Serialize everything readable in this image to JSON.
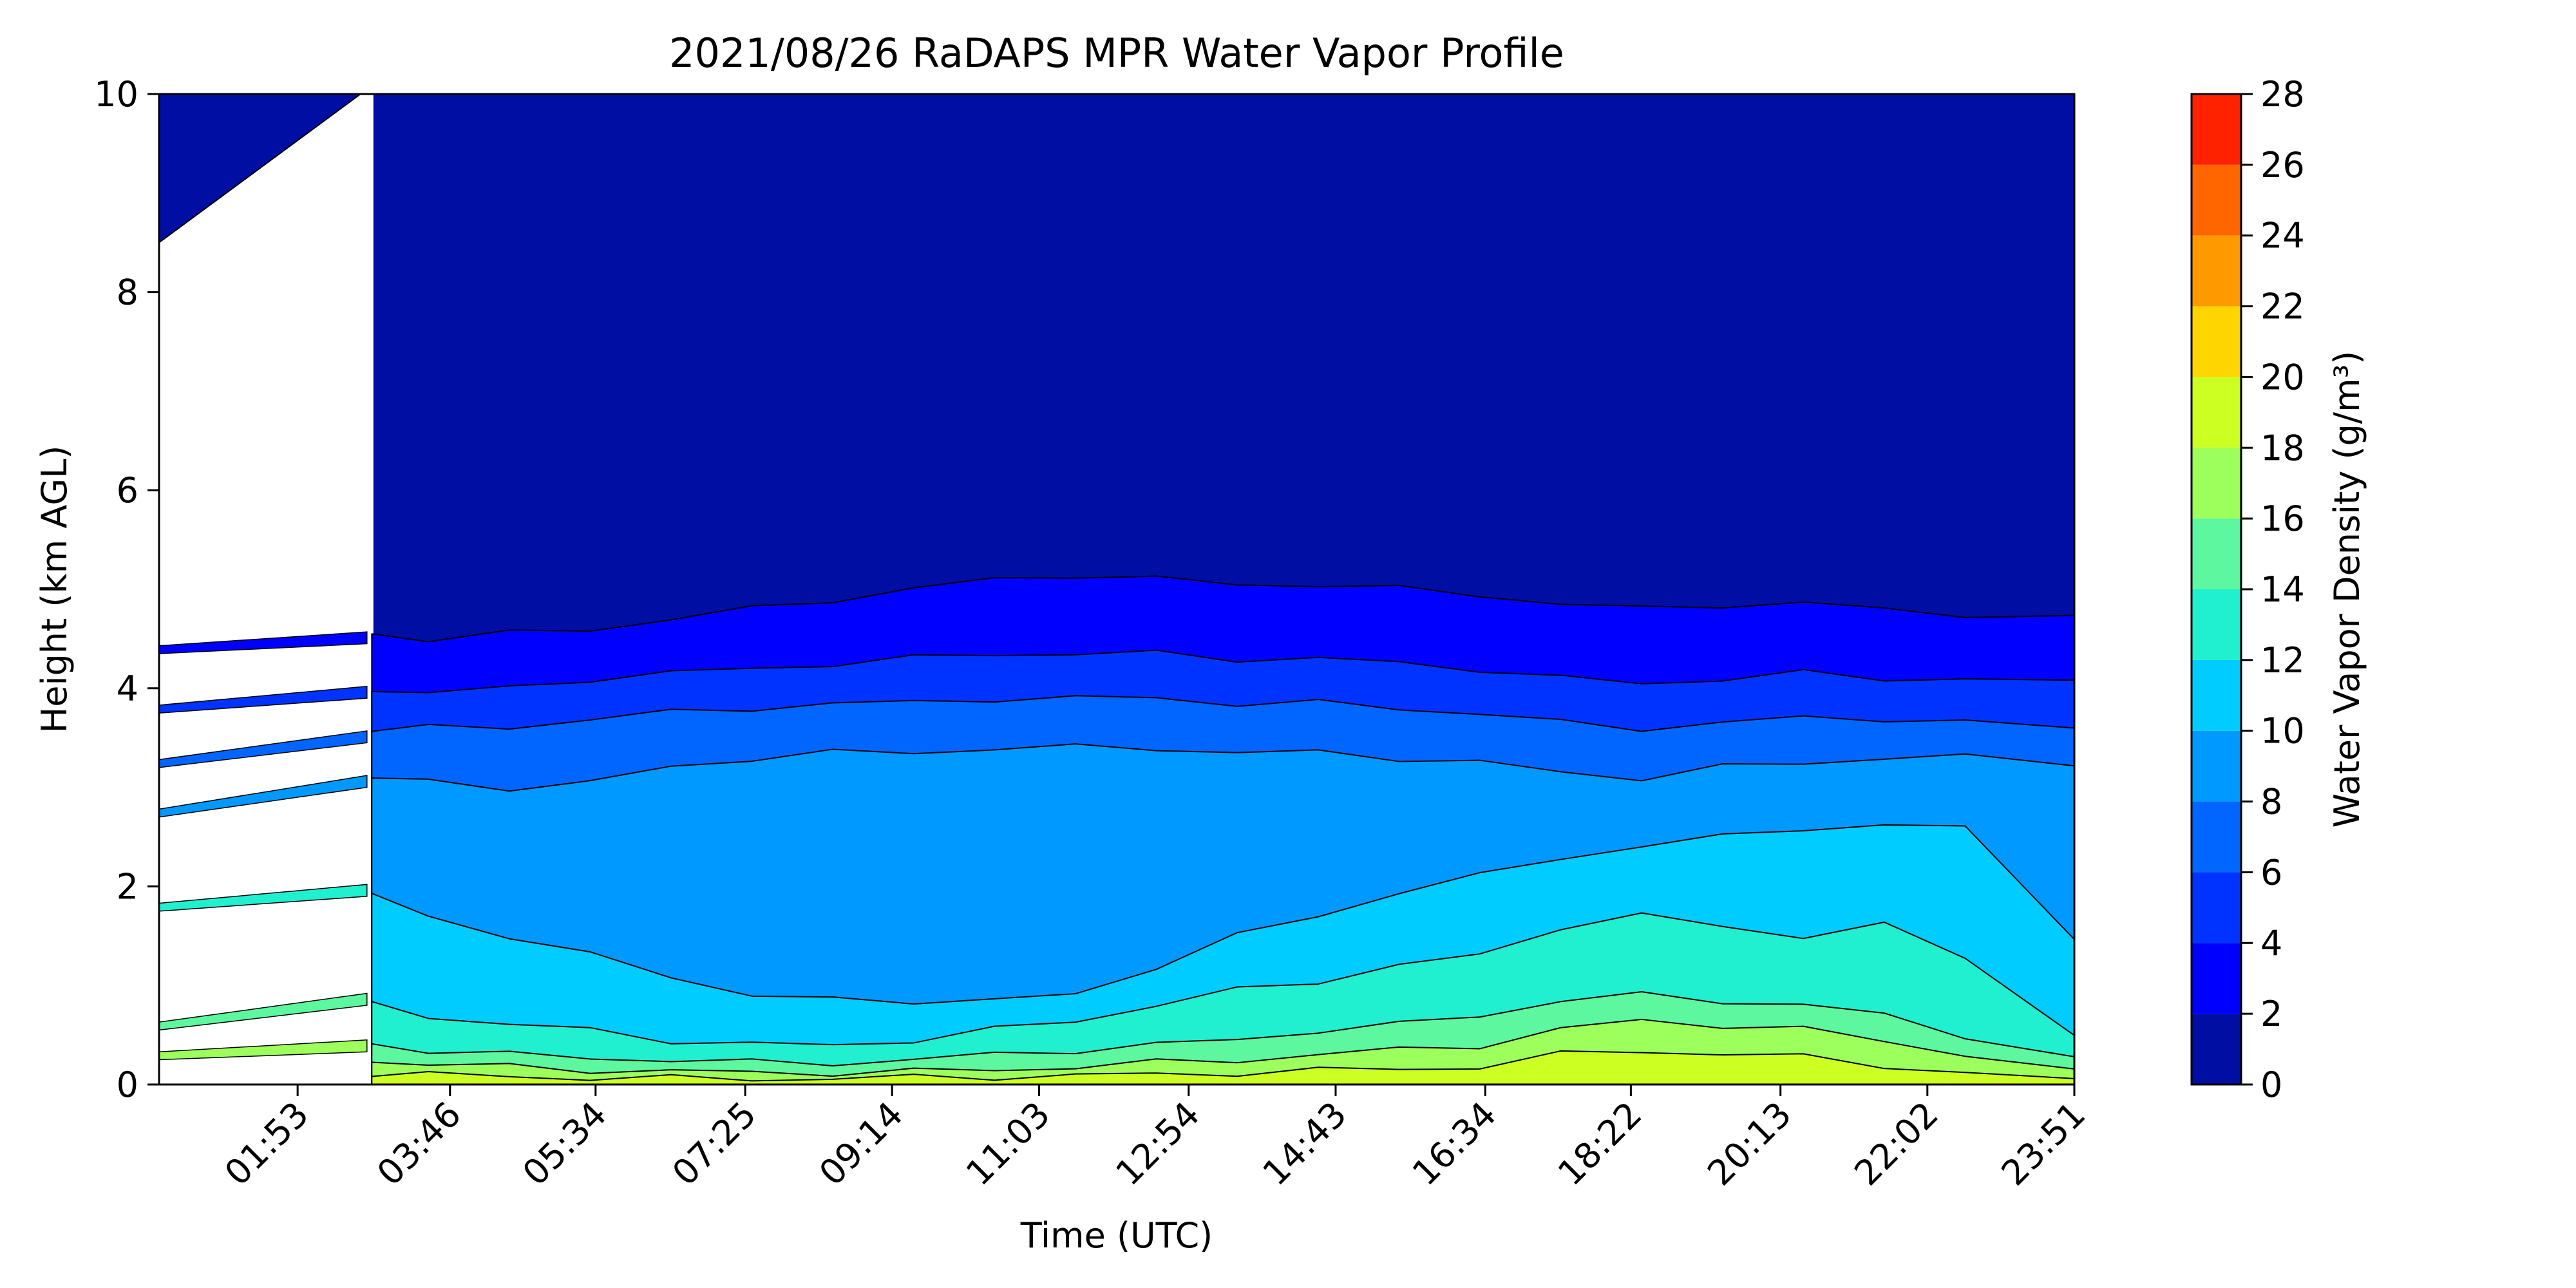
{
  "chart_data": {
    "type": "heatmap",
    "title": "2021/08/26 RaDAPS MPR Water Vapor Profile",
    "xlabel": "Time (UTC)",
    "ylabel": "Height (km AGL)",
    "ylim": [
      0,
      10
    ],
    "yticks": [
      "0",
      "2",
      "4",
      "6",
      "8",
      "10"
    ],
    "xticks": [
      "01:53",
      "03:46",
      "05:34",
      "07:25",
      "09:14",
      "11:03",
      "12:54",
      "14:43",
      "16:34",
      "18:22",
      "20:13",
      "22:02",
      "23:51"
    ],
    "xtick_hours": [
      1.883,
      3.767,
      5.567,
      7.417,
      9.233,
      11.05,
      12.9,
      14.717,
      16.567,
      18.367,
      20.217,
      22.033,
      23.85
    ],
    "xlim_hours": [
      0.17,
      23.85
    ],
    "data_gap_end_hour": 2.82,
    "colorbar": {
      "label": "Water Vapor Density (g/m³)",
      "ticks": [
        "0",
        "2",
        "4",
        "6",
        "8",
        "10",
        "12",
        "14",
        "16",
        "18",
        "20",
        "22",
        "24",
        "26",
        "28"
      ],
      "levels": [
        0,
        2,
        4,
        6,
        8,
        10,
        12,
        14,
        16,
        18,
        20,
        22,
        24,
        26,
        28
      ],
      "colors": [
        "#000ea3",
        "#0000ff",
        "#0033ff",
        "#0066ff",
        "#0099ff",
        "#00ccff",
        "#20f0d0",
        "#5cf79e",
        "#9cff5c",
        "#ccff22",
        "#ffd500",
        "#ff9900",
        "#ff6600",
        "#ff2200",
        "#a80000"
      ]
    },
    "contour_boundaries_km": {
      "hours": [
        2.8,
        3.5,
        4.5,
        5.5,
        6.5,
        7.5,
        8.5,
        9.5,
        10.5,
        11.5,
        12.5,
        13.5,
        14.5,
        15.5,
        16.5,
        17.5,
        18.5,
        19.5,
        20.5,
        21.5,
        22.5,
        23.85
      ],
      "2": [
        4.55,
        4.5,
        4.55,
        4.6,
        4.7,
        4.8,
        4.9,
        5.0,
        5.1,
        5.15,
        5.1,
        5.05,
        5.05,
        5.0,
        4.95,
        4.85,
        4.8,
        4.85,
        4.85,
        4.8,
        4.75,
        4.7
      ],
      "4": [
        4.0,
        3.95,
        4.0,
        4.1,
        4.15,
        4.2,
        4.25,
        4.3,
        4.35,
        4.35,
        4.35,
        4.3,
        4.3,
        4.25,
        4.2,
        4.1,
        4.05,
        4.1,
        4.15,
        4.1,
        4.1,
        4.05
      ],
      "6": [
        3.6,
        3.6,
        3.6,
        3.7,
        3.75,
        3.8,
        3.85,
        3.85,
        3.9,
        3.9,
        3.9,
        3.85,
        3.85,
        3.8,
        3.75,
        3.65,
        3.6,
        3.65,
        3.7,
        3.7,
        3.65,
        3.6
      ],
      "8": [
        3.1,
        3.05,
        3.0,
        3.05,
        3.2,
        3.3,
        3.35,
        3.35,
        3.4,
        3.4,
        3.4,
        3.35,
        3.35,
        3.3,
        3.25,
        3.15,
        3.1,
        3.2,
        3.25,
        3.3,
        3.3,
        3.25
      ],
      "10": [
        1.9,
        1.7,
        1.5,
        1.3,
        1.1,
        0.9,
        0.85,
        0.85,
        0.85,
        0.9,
        1.2,
        1.5,
        1.7,
        1.95,
        2.1,
        2.3,
        2.4,
        2.5,
        2.6,
        2.6,
        2.6,
        1.5
      ],
      "12": [
        0.8,
        0.7,
        0.6,
        0.55,
        0.45,
        0.4,
        0.4,
        0.45,
        0.55,
        0.65,
        0.8,
        0.95,
        1.05,
        1.2,
        1.3,
        1.6,
        1.7,
        1.6,
        1.5,
        1.6,
        1.3,
        0.5
      ],
      "14": [
        0.4,
        0.35,
        0.3,
        0.27,
        0.25,
        0.22,
        0.22,
        0.25,
        0.3,
        0.35,
        0.4,
        0.45,
        0.55,
        0.6,
        0.7,
        0.85,
        0.9,
        0.85,
        0.8,
        0.7,
        0.5,
        0.25
      ],
      "16": [
        0.25,
        0.2,
        0.18,
        0.15,
        0.13,
        0.12,
        0.12,
        0.13,
        0.15,
        0.18,
        0.22,
        0.25,
        0.3,
        0.35,
        0.4,
        0.55,
        0.65,
        0.6,
        0.55,
        0.45,
        0.3,
        0.12
      ],
      "18": [
        0.12,
        0.1,
        0.08,
        0.07,
        0.06,
        0.06,
        0.06,
        0.07,
        0.08,
        0.09,
        0.1,
        0.12,
        0.14,
        0.16,
        0.18,
        0.3,
        0.35,
        0.3,
        0.28,
        0.2,
        0.1,
        0.05
      ]
    }
  }
}
